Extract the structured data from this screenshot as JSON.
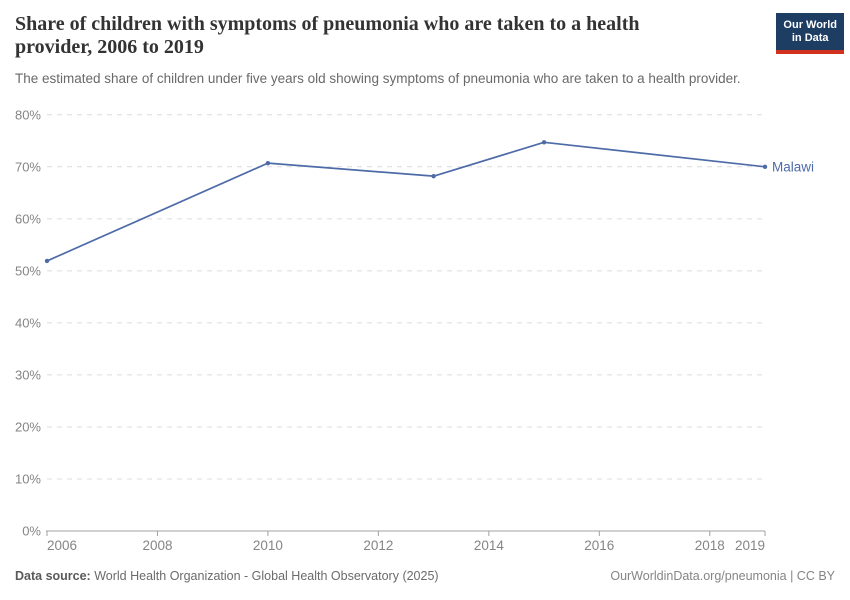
{
  "header": {
    "logo_line1": "Our World",
    "logo_line2": "in Data"
  },
  "chart_data": {
    "type": "line",
    "title": "Share of children with symptoms of pneumonia who are taken to a health provider, 2006 to 2019",
    "subtitle": "The estimated share of children under five years old showing symptoms of pneumonia who are taken to a health provider.",
    "series": [
      {
        "name": "Malawi",
        "color": "#4e6ba8",
        "x": [
          2006,
          2010,
          2013,
          2015,
          2019
        ],
        "values": [
          51.9,
          70.7,
          68.2,
          74.7,
          70.0
        ]
      }
    ],
    "x_ticks": [
      2006,
      2008,
      2010,
      2012,
      2014,
      2016,
      2018,
      2019
    ],
    "y_ticks": [
      0,
      10,
      20,
      30,
      40,
      50,
      60,
      70,
      80
    ],
    "xlim": [
      2006,
      2019
    ],
    "ylim": [
      0,
      80
    ],
    "y_unit": "%",
    "xlabel": "",
    "ylabel": "",
    "grid": "horizontal-dashed",
    "legend_position": "end-of-line-label",
    "end_label": "Malawi"
  },
  "footer": {
    "source_label": "Data source:",
    "source_text": " World Health Organization - Global Health Observatory (2025)",
    "citation": "OurWorldinData.org/pneumonia | CC BY"
  },
  "colors": {
    "line": "#4e6ba8",
    "gridline": "#dcdcdc",
    "axis": "#a1a1a1",
    "tick_label": "#858585",
    "title": "#333333",
    "subtitle": "#696969",
    "logo_bg": "#1d3d63",
    "logo_red": "#d0321f"
  }
}
